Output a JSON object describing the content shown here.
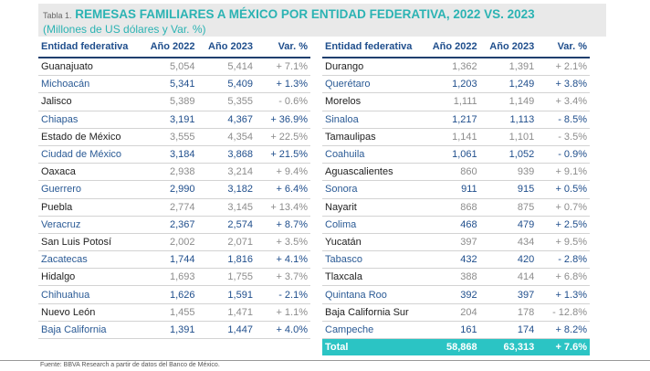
{
  "header": {
    "prefix": "Tabla 1.",
    "title": "REMESAS FAMILIARES A MÉXICO POR ENTIDAD FEDERATIVA, 2022 VS. 2023",
    "subtitle": "(Millones de US dólares y Var. %)"
  },
  "columns": [
    "Entidad federativa",
    "Año 2022",
    "Año 2023",
    "Var. %"
  ],
  "left_rows": [
    {
      "name": "Guanajuato",
      "y2022": "5,054",
      "y2023": "5,414",
      "var": "+ 7.1%"
    },
    {
      "name": "Michoacán",
      "y2022": "5,341",
      "y2023": "5,409",
      "var": "+ 1.3%"
    },
    {
      "name": "Jalisco",
      "y2022": "5,389",
      "y2023": "5,355",
      "var": "- 0.6%"
    },
    {
      "name": "Chiapas",
      "y2022": "3,191",
      "y2023": "4,367",
      "var": "+ 36.9%"
    },
    {
      "name": "Estado de México",
      "y2022": "3,555",
      "y2023": "4,354",
      "var": "+ 22.5%"
    },
    {
      "name": "Ciudad de México",
      "y2022": "3,184",
      "y2023": "3,868",
      "var": "+ 21.5%"
    },
    {
      "name": "Oaxaca",
      "y2022": "2,938",
      "y2023": "3,214",
      "var": "+ 9.4%"
    },
    {
      "name": "Guerrero",
      "y2022": "2,990",
      "y2023": "3,182",
      "var": "+ 6.4%"
    },
    {
      "name": "Puebla",
      "y2022": "2,774",
      "y2023": "3,145",
      "var": "+ 13.4%"
    },
    {
      "name": "Veracruz",
      "y2022": "2,367",
      "y2023": "2,574",
      "var": "+ 8.7%"
    },
    {
      "name": "San Luis Potosí",
      "y2022": "2,002",
      "y2023": "2,071",
      "var": "+ 3.5%"
    },
    {
      "name": "Zacatecas",
      "y2022": "1,744",
      "y2023": "1,816",
      "var": "+ 4.1%"
    },
    {
      "name": "Hidalgo",
      "y2022": "1,693",
      "y2023": "1,755",
      "var": "+ 3.7%"
    },
    {
      "name": "Chihuahua",
      "y2022": "1,626",
      "y2023": "1,591",
      "var": "- 2.1%"
    },
    {
      "name": "Nuevo León",
      "y2022": "1,455",
      "y2023": "1,471",
      "var": "+ 1.1%"
    },
    {
      "name": "Baja California",
      "y2022": "1,391",
      "y2023": "1,447",
      "var": "+ 4.0%"
    }
  ],
  "right_rows": [
    {
      "name": "Durango",
      "y2022": "1,362",
      "y2023": "1,391",
      "var": "+ 2.1%"
    },
    {
      "name": "Querétaro",
      "y2022": "1,203",
      "y2023": "1,249",
      "var": "+ 3.8%"
    },
    {
      "name": "Morelos",
      "y2022": "1,111",
      "y2023": "1,149",
      "var": "+ 3.4%"
    },
    {
      "name": "Sinaloa",
      "y2022": "1,217",
      "y2023": "1,113",
      "var": "- 8.5%"
    },
    {
      "name": "Tamaulipas",
      "y2022": "1,141",
      "y2023": "1,101",
      "var": "- 3.5%"
    },
    {
      "name": "Coahuila",
      "y2022": "1,061",
      "y2023": "1,052",
      "var": "- 0.9%"
    },
    {
      "name": "Aguascalientes",
      "y2022": "860",
      "y2023": "939",
      "var": "+ 9.1%"
    },
    {
      "name": "Sonora",
      "y2022": "911",
      "y2023": "915",
      "var": "+ 0.5%"
    },
    {
      "name": "Nayarit",
      "y2022": "868",
      "y2023": "875",
      "var": "+ 0.7%"
    },
    {
      "name": "Colima",
      "y2022": "468",
      "y2023": "479",
      "var": "+ 2.5%"
    },
    {
      "name": "Yucatán",
      "y2022": "397",
      "y2023": "434",
      "var": "+ 9.5%"
    },
    {
      "name": "Tabasco",
      "y2022": "432",
      "y2023": "420",
      "var": "- 2.8%"
    },
    {
      "name": "Tlaxcala",
      "y2022": "388",
      "y2023": "414",
      "var": "+ 6.8%"
    },
    {
      "name": "Quintana Roo",
      "y2022": "392",
      "y2023": "397",
      "var": "+ 1.3%"
    },
    {
      "name": "Baja California Sur",
      "y2022": "204",
      "y2023": "178",
      "var": "- 12.8%"
    },
    {
      "name": "Campeche",
      "y2022": "161",
      "y2023": "174",
      "var": "+ 8.2%"
    }
  ],
  "total": {
    "name": "Total",
    "y2022": "58,868",
    "y2023": "63,313",
    "var": "+ 7.6%"
  },
  "source": "Fuente: BBVA Research a partir de datos del Banco de México.",
  "colors": {
    "title_teal": "#2bb3b3",
    "header_blue": "#1f4e8c",
    "total_bg": "#2bc4c4"
  }
}
